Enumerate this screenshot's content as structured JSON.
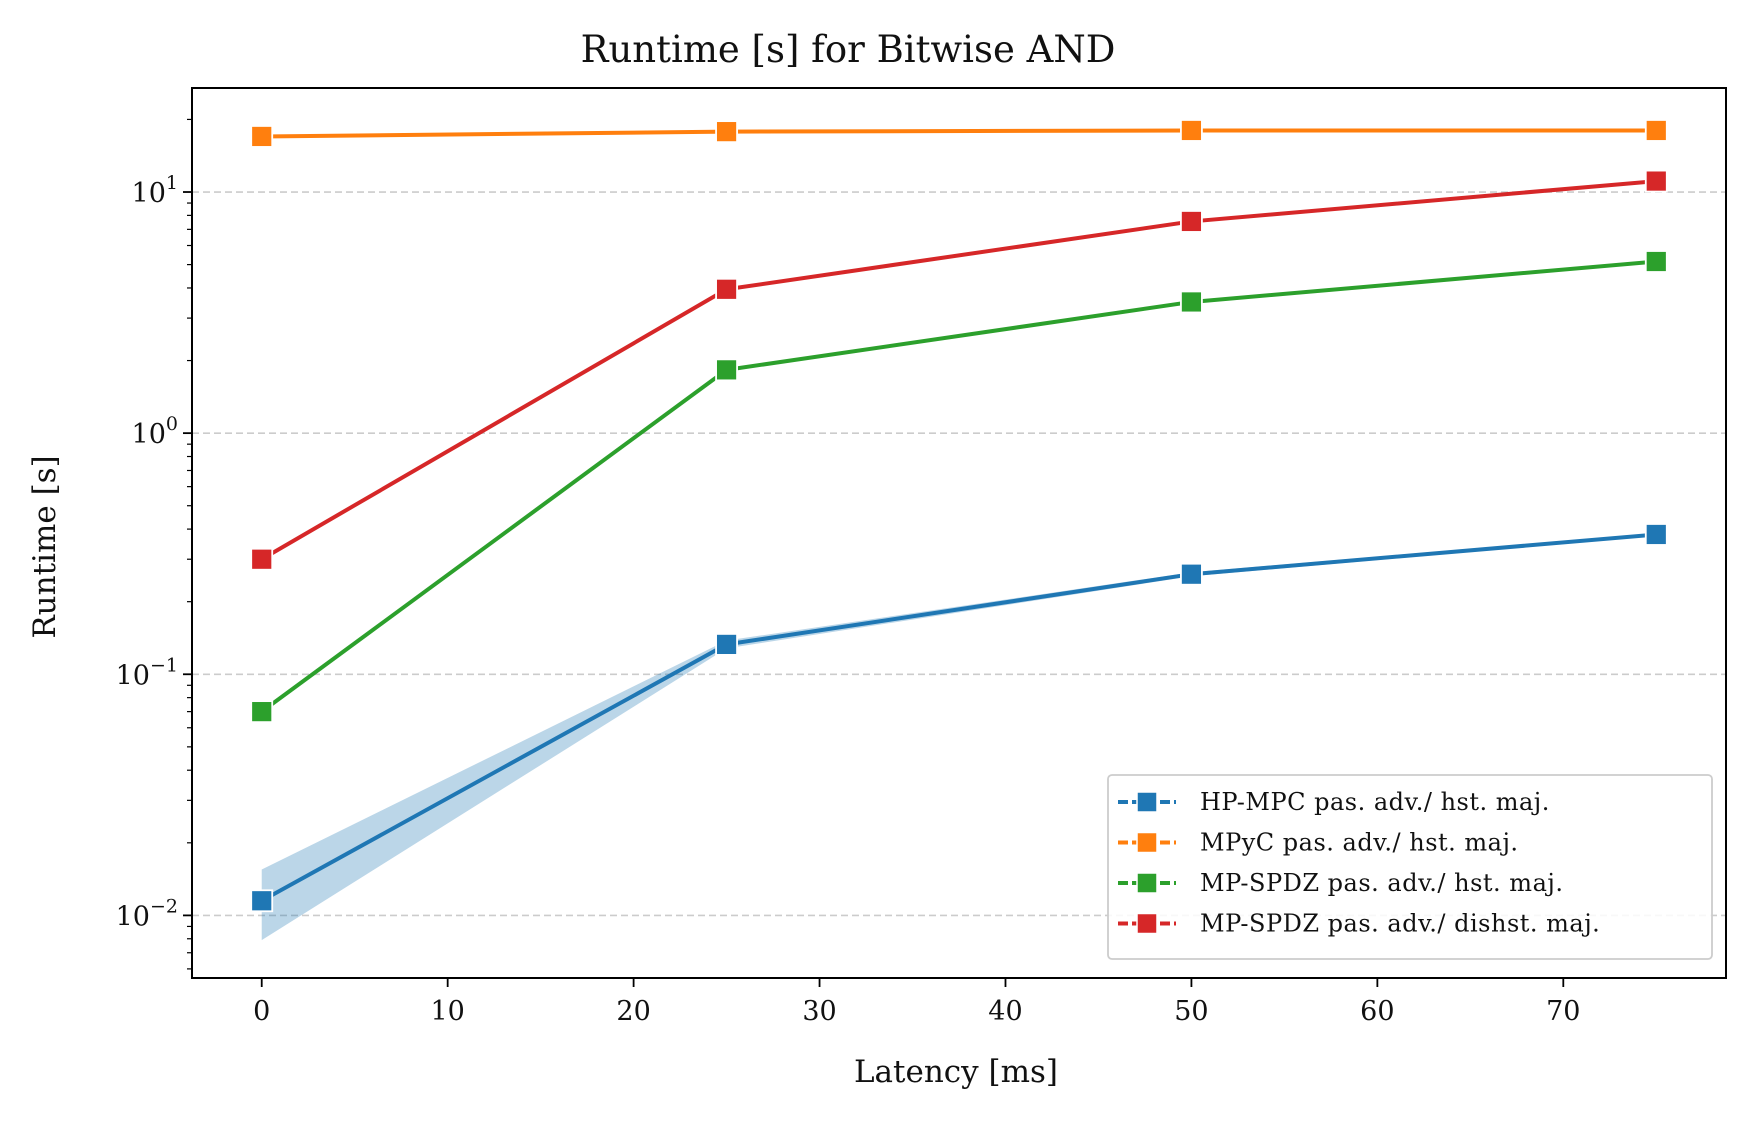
{
  "chart_data": {
    "type": "line",
    "title": "Runtime [s] for Bitwise AND",
    "xlabel": "Latency [ms]",
    "ylabel": "Runtime [s]",
    "yscale": "log",
    "xlim": [
      -3.75,
      78.75
    ],
    "ylim": [
      0.0055,
      27
    ],
    "x_ticks": [
      0,
      10,
      20,
      30,
      40,
      50,
      60,
      70
    ],
    "y_ticks": [
      {
        "value": 0.01,
        "base": "10",
        "exp": "−2"
      },
      {
        "value": 0.1,
        "base": "10",
        "exp": "−1"
      },
      {
        "value": 1,
        "base": "10",
        "exp": "0"
      },
      {
        "value": 10,
        "base": "10",
        "exp": "1"
      }
    ],
    "grid": "y-major-dashed",
    "legend_position": "lower-right",
    "x": [
      0,
      25,
      50,
      75
    ],
    "series": [
      {
        "name": "HP-MPC pas. adv./ hst. maj.",
        "color": "#1f77b4",
        "values": [
          0.0115,
          0.133,
          0.26,
          0.38
        ],
        "band_low": [
          0.0079,
          0.128,
          0.255,
          0.375
        ],
        "band_high": [
          0.0155,
          0.138,
          0.265,
          0.385
        ]
      },
      {
        "name": "MPyC pas. adv./ hst. maj.",
        "color": "#ff7f0e",
        "values": [
          17.0,
          17.8,
          18.0,
          18.0
        ]
      },
      {
        "name": "MP-SPDZ pas. adv./ hst. maj.",
        "color": "#2ca02c",
        "values": [
          0.07,
          1.83,
          3.5,
          5.15
        ]
      },
      {
        "name": "MP-SPDZ pas. adv./ dishst. maj.",
        "color": "#d62728",
        "values": [
          0.3,
          3.95,
          7.55,
          11.1
        ]
      }
    ]
  }
}
